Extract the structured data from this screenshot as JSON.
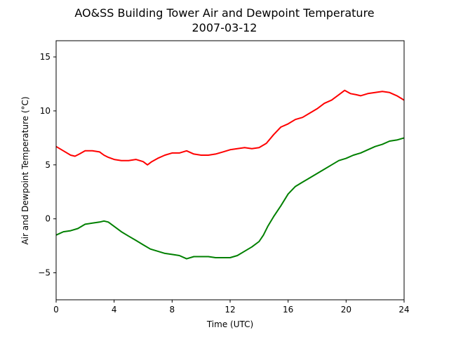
{
  "chart_data": {
    "type": "line",
    "title": "AO&SS Building Tower Air and Dewpoint Temperature",
    "subtitle": "2007-03-12",
    "xlabel": "Time (UTC)",
    "ylabel": "Air and Dewpoint Temperature (°C)",
    "xlim": [
      0,
      24
    ],
    "ylim": [
      -7.5,
      16.5
    ],
    "xticks": [
      0,
      4,
      8,
      12,
      16,
      20,
      24
    ],
    "yticks": [
      -5,
      0,
      5,
      10,
      15
    ],
    "xtick_labels": [
      "0",
      "4",
      "8",
      "12",
      "16",
      "20",
      "24"
    ],
    "ytick_labels": [
      "−5",
      "0",
      "5",
      "10",
      "15"
    ],
    "grid": false,
    "series": [
      {
        "color": "#ff0000",
        "x": [
          0,
          0.5,
          1,
          1.3,
          1.6,
          2,
          2.5,
          3,
          3.3,
          3.6,
          4,
          4.5,
          5,
          5.5,
          6,
          6.3,
          6.6,
          7,
          7.5,
          8,
          8.5,
          9,
          9.5,
          10,
          10.5,
          11,
          11.5,
          12,
          12.5,
          13,
          13.5,
          14,
          14.5,
          15,
          15.5,
          16,
          16.5,
          17,
          17.5,
          18,
          18.5,
          19,
          19.5,
          19.9,
          20.3,
          20.7,
          21,
          21.5,
          22,
          22.5,
          23,
          23.5,
          24
        ],
        "y": [
          6.7,
          6.3,
          5.9,
          5.8,
          6.0,
          6.3,
          6.3,
          6.2,
          5.9,
          5.7,
          5.5,
          5.4,
          5.4,
          5.5,
          5.3,
          5.0,
          5.3,
          5.6,
          5.9,
          6.1,
          6.1,
          6.3,
          6.0,
          5.9,
          5.9,
          6.0,
          6.2,
          6.4,
          6.5,
          6.6,
          6.5,
          6.6,
          7.0,
          7.8,
          8.5,
          8.8,
          9.2,
          9.4,
          9.8,
          10.2,
          10.7,
          11.0,
          11.5,
          11.9,
          11.6,
          11.5,
          11.4,
          11.6,
          11.7,
          11.8,
          11.7,
          11.4,
          11.0
        ]
      },
      {
        "color": "#008000",
        "x": [
          0,
          0.5,
          1,
          1.5,
          2,
          2.5,
          3,
          3.3,
          3.6,
          4,
          4.5,
          5,
          5.5,
          6,
          6.5,
          7,
          7.5,
          8,
          8.5,
          9,
          9.5,
          10,
          10.5,
          11,
          11.5,
          12,
          12.5,
          13,
          13.5,
          14,
          14.3,
          14.6,
          15,
          15.5,
          16,
          16.5,
          17,
          17.5,
          18,
          18.5,
          19,
          19.5,
          20,
          20.5,
          21,
          21.5,
          22,
          22.5,
          23,
          23.5,
          24
        ],
        "y": [
          -1.5,
          -1.2,
          -1.1,
          -0.9,
          -0.5,
          -0.4,
          -0.3,
          -0.2,
          -0.3,
          -0.7,
          -1.2,
          -1.6,
          -2.0,
          -2.4,
          -2.8,
          -3.0,
          -3.2,
          -3.3,
          -3.4,
          -3.7,
          -3.5,
          -3.5,
          -3.5,
          -3.6,
          -3.6,
          -3.6,
          -3.4,
          -3.0,
          -2.6,
          -2.1,
          -1.5,
          -0.7,
          0.2,
          1.2,
          2.3,
          3.0,
          3.4,
          3.8,
          4.2,
          4.6,
          5.0,
          5.4,
          5.6,
          5.9,
          6.1,
          6.4,
          6.7,
          6.9,
          7.2,
          7.3,
          7.5
        ]
      }
    ]
  }
}
